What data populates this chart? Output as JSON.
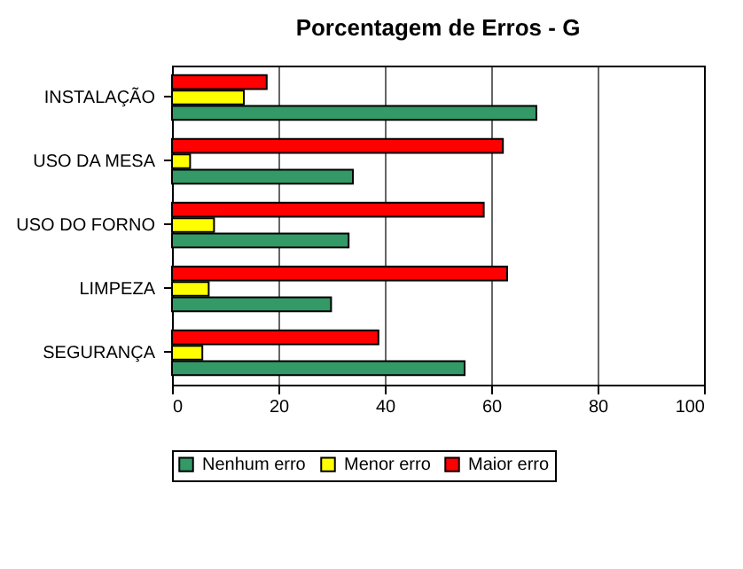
{
  "chart_data": {
    "type": "bar",
    "title": "Porcentagem de Erros - G",
    "orientation": "horizontal",
    "categories": [
      "INSTALAÇÃO",
      "USO DA MESA",
      "USO DO FORNO",
      "LIMPEZA",
      "SEGURANÇA"
    ],
    "series": [
      {
        "name": "Nenhum erro",
        "color": "#339966",
        "values": [
          68.5,
          34,
          33.2,
          29.9,
          55
        ]
      },
      {
        "name": "Menor erro",
        "color": "#ffff00",
        "values": [
          13.5,
          3.4,
          7.9,
          6.9,
          5.7
        ]
      },
      {
        "name": "Maior erro",
        "color": "#ff0000",
        "values": [
          17.8,
          62.2,
          58.6,
          63,
          38.8
        ]
      }
    ],
    "xlim": [
      0,
      100
    ],
    "xticks": [
      0,
      20,
      40,
      60,
      80,
      100
    ],
    "grid": "x",
    "legend": "bottom"
  }
}
